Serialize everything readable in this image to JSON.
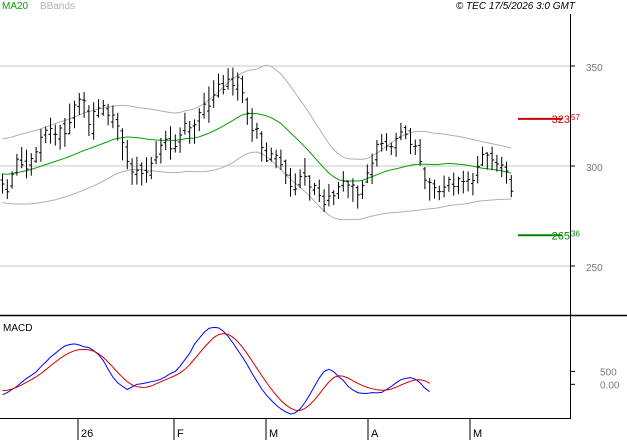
{
  "header": {
    "ma_label": "MA20",
    "bb_label": "BBands",
    "copyright": "© TEC 17/5/2026 3:0 GMT"
  },
  "colors": {
    "ma": "#00a000",
    "bb": "#b0b0b0",
    "macd": "#0000ff",
    "signal": "#d00000",
    "resistance": "#cc0000",
    "support": "#008800",
    "price": "#000000",
    "grid": "#c8c8c8"
  },
  "chart_data": [
    {
      "type": "bar",
      "name": "price",
      "ylim": [
        226,
        376
      ],
      "y_ticks": [
        {
          "value": 250,
          "label": "250"
        },
        {
          "value": 300,
          "label": "300"
        },
        {
          "value": 350,
          "label": "350"
        }
      ],
      "x_ticks": [
        "26",
        "F",
        "M",
        "A",
        "M"
      ],
      "levels": [
        {
          "name": "resistance",
          "value": 323.57,
          "label_main": "323",
          "label_frac": "57"
        },
        {
          "name": "support",
          "value": 265.36,
          "label_main": "265",
          "label_frac": "36"
        }
      ],
      "ohlc": [
        [
          293.0,
          291.0,
          296.1,
          286.2
        ],
        [
          288.3,
          287.1,
          293.4,
          283.5
        ],
        [
          290.0,
          295.9,
          297.4,
          288.7
        ],
        [
          296.7,
          303.4,
          306.1,
          295.2
        ],
        [
          302.9,
          300.6,
          309.5,
          298.9
        ],
        [
          302.4,
          298.5,
          308.2,
          293.8
        ],
        [
          300.5,
          303.7,
          306.4,
          295.2
        ],
        [
          302.4,
          307.1,
          309.5,
          301.6
        ],
        [
          306.6,
          314.4,
          318.5,
          302.1
        ],
        [
          315.5,
          317.9,
          319.6,
          311.4
        ],
        [
          315.8,
          318.8,
          324.1,
          311.2
        ],
        [
          315.9,
          315.8,
          320.7,
          310.2
        ],
        [
          313.5,
          319.0,
          320.6,
          308.2
        ],
        [
          321.1,
          316.2,
          324.0,
          309.6
        ],
        [
          316.1,
          321.7,
          331.2,
          315.8
        ],
        [
          324.0,
          330.5,
          332.6,
          318.9
        ],
        [
          329.8,
          333.4,
          336.5,
          325.5
        ],
        [
          333.0,
          332.6,
          337.0,
          324.1
        ],
        [
          327.5,
          320.7,
          330.4,
          315.0
        ],
        [
          316.2,
          327.3,
          331.9,
          313.1
        ],
        [
          325.3,
          329.0,
          333.4,
          324.2
        ],
        [
          326.1,
          330.2,
          333.0,
          325.1
        ],
        [
          328.6,
          325.4,
          331.1,
          320.3
        ],
        [
          322.0,
          325.5,
          330.3,
          318.9
        ],
        [
          323.2,
          320.0,
          326.6,
          312.7
        ],
        [
          317.6,
          311.7,
          318.8,
          302.8
        ],
        [
          309.5,
          302.3,
          313.0,
          298.4
        ],
        [
          301.1,
          297.0,
          303.9,
          290.6
        ],
        [
          295.8,
          297.9,
          304.6,
          290.7
        ],
        [
          300.4,
          296.3,
          301.8,
          290.2
        ],
        [
          297.8,
          297.0,
          304.3,
          291.6
        ],
        [
          295.4,
          301.4,
          304.5,
          293.4
        ],
        [
          303.0,
          304.5,
          312.4,
          300.9
        ],
        [
          305.9,
          310.4,
          314.0,
          301.2
        ],
        [
          311.7,
          313.4,
          317.6,
          307.9
        ],
        [
          313.7,
          308.6,
          319.9,
          303.2
        ],
        [
          308.7,
          309.7,
          315.8,
          306.7
        ],
        [
          312.0,
          315.5,
          319.3,
          306.6
        ],
        [
          317.7,
          321.3,
          326.6,
          315.7
        ],
        [
          317.1,
          319.1,
          322.5,
          311.1
        ],
        [
          320.0,
          320.6,
          323.3,
          311.1
        ],
        [
          322.5,
          326.7,
          328.9,
          317.5
        ],
        [
          325.7,
          330.9,
          336.6,
          323.7
        ],
        [
          327.5,
          329.9,
          339.8,
          321.6
        ],
        [
          333.0,
          335.5,
          342.9,
          329.1
        ],
        [
          335.1,
          340.9,
          346.2,
          334.2
        ],
        [
          341.2,
          338.3,
          345.5,
          335.8
        ],
        [
          339.8,
          343.4,
          348.9,
          338.2
        ],
        [
          343.5,
          340.2,
          349.2,
          335.2
        ],
        [
          338.4,
          344.4,
          346.8,
          332.7
        ],
        [
          343.6,
          336.6,
          345.2,
          331.5
        ],
        [
          333.1,
          326.4,
          334.3,
          320.6
        ],
        [
          324.1,
          317.7,
          328.9,
          312.1
        ],
        [
          318.4,
          318.7,
          321.6,
          313.6
        ],
        [
          316.1,
          309.3,
          317.3,
          302.2
        ],
        [
          307.7,
          302.6,
          311.8,
          302.0
        ],
        [
          303.3,
          306.1,
          309.2,
          302.2
        ],
        [
          303.6,
          305.3,
          308.1,
          298.9
        ],
        [
          304.3,
          300.6,
          308.2,
          298.0
        ],
        [
          302.4,
          295.5,
          303.2,
          291.0
        ],
        [
          295.4,
          289.8,
          299.0,
          284.7
        ],
        [
          288.1,
          288.5,
          296.3,
          285.3
        ],
        [
          290.6,
          294.8,
          298.3,
          289.0
        ],
        [
          296.6,
          294.8,
          304.0,
          290.2
        ],
        [
          294.9,
          289.5,
          295.4,
          282.7
        ],
        [
          288.0,
          290.3,
          291.5,
          285.5
        ],
        [
          289.0,
          285.2,
          293.2,
          282.0
        ],
        [
          284.8,
          280.7,
          288.4,
          277.0
        ],
        [
          282.8,
          285.0,
          291.0,
          279.8
        ],
        [
          286.8,
          285.1,
          287.9,
          280.4
        ],
        [
          286.2,
          289.6,
          292.0,
          283.5
        ],
        [
          290.3,
          292.4,
          297.4,
          287.2
        ],
        [
          292.2,
          290.5,
          292.8,
          283.9
        ],
        [
          289.9,
          290.5,
          293.8,
          282.1
        ],
        [
          289.2,
          285.6,
          290.3,
          278.7
        ],
        [
          285.9,
          290.2,
          292.7,
          283.5
        ],
        [
          292.0,
          296.5,
          300.8,
          291.5
        ],
        [
          295.7,
          301.4,
          306.2,
          291.0
        ],
        [
          303.1,
          310.8,
          313.0,
          299.7
        ],
        [
          311.0,
          311.3,
          316.0,
          307.2
        ],
        [
          312.2,
          310.0,
          316.4,
          307.6
        ],
        [
          309.7,
          309.6,
          311.6,
          305.5
        ],
        [
          309.1,
          313.8,
          316.6,
          304.6
        ],
        [
          314.4,
          317.0,
          321.6,
          312.9
        ],
        [
          319.2,
          315.9,
          320.3,
          313.4
        ],
        [
          317.6,
          310.8,
          319.0,
          306.0
        ],
        [
          309.7,
          310.0,
          313.2,
          305.5
        ],
        [
          310.3,
          302.2,
          313.5,
          300.2
        ],
        [
          298.5,
          292.9,
          299.5,
          288.4
        ],
        [
          292.0,
          291.8,
          294.1,
          282.7
        ],
        [
          291.1,
          289.2,
          293.2,
          283.7
        ],
        [
          287.2,
          287.2,
          290.2,
          282.9
        ],
        [
          287.2,
          289.4,
          295.2,
          284.3
        ],
        [
          290.2,
          293.3,
          294.6,
          287.1
        ],
        [
          290.9,
          289.7,
          296.7,
          285.2
        ],
        [
          289.7,
          293.6,
          294.6,
          285.9
        ],
        [
          292.3,
          292.3,
          297.6,
          286.3
        ],
        [
          292.4,
          293.2,
          297.3,
          287.3
        ],
        [
          291.2,
          292.7,
          296.5,
          285.3
        ],
        [
          295.4,
          299.7,
          305.0,
          291.3
        ],
        [
          300.6,
          305.8,
          309.6,
          300.0
        ],
        [
          306.4,
          305.5,
          306.9,
          298.2
        ],
        [
          306.3,
          303.0,
          309.7,
          297.9
        ],
        [
          301.8,
          301.0,
          305.6,
          297.2
        ],
        [
          299.1,
          300.5,
          304.6,
          294.5
        ],
        [
          299.4,
          297.5,
          302.2,
          291.2
        ],
        [
          293.3,
          287.4,
          295.5,
          284.4
        ]
      ],
      "ma20": [
        296.1,
        295.9,
        296.2,
        296.6,
        297.2,
        297.7,
        298.3,
        299.1,
        299.9,
        300.7,
        301.5,
        302.3,
        303.1,
        303.9,
        304.8,
        305.8,
        306.8,
        307.8,
        308.6,
        309.5,
        310.4,
        311.3,
        312.2,
        313.2,
        313.8,
        314.2,
        314.5,
        314.4,
        314.2,
        313.9,
        313.5,
        313.2,
        313.0,
        312.9,
        312.9,
        312.8,
        312.8,
        313.1,
        313.6,
        313.8,
        314.0,
        314.6,
        315.5,
        316.4,
        317.5,
        318.7,
        320.0,
        321.4,
        322.8,
        324.3,
        325.6,
        326.1,
        326.3,
        326.2,
        325.7,
        325.1,
        324.1,
        322.8,
        321.2,
        319.0,
        316.6,
        314.3,
        312.0,
        309.6,
        307.0,
        304.3,
        301.6,
        298.9,
        296.5,
        294.6,
        293.2,
        292.6,
        292.5,
        292.5,
        292.5,
        292.8,
        293.8,
        294.7,
        295.6,
        296.6,
        297.5,
        298.1,
        298.6,
        299.2,
        299.8,
        300.3,
        300.8,
        300.9,
        300.9,
        300.8,
        300.7,
        300.8,
        301.1,
        301.3,
        301.1,
        300.9,
        300.7,
        300.4,
        299.9,
        299.4,
        298.9,
        298.6,
        298.3,
        298.0,
        297.6,
        297.0,
        296.4
      ],
      "bb_upper": [
        313.5,
        314.0,
        314.5,
        315.3,
        316.0,
        316.6,
        317.3,
        317.9,
        318.6,
        319.6,
        320.3,
        321.3,
        322.1,
        322.8,
        323.6,
        324.6,
        325.6,
        326.5,
        327.2,
        327.9,
        328.5,
        329.0,
        329.5,
        329.9,
        330.2,
        330.3,
        330.2,
        329.8,
        329.3,
        329.0,
        328.7,
        328.4,
        328.0,
        327.5,
        327.1,
        326.7,
        326.5,
        326.8,
        327.5,
        328.0,
        328.6,
        329.7,
        331.3,
        333.0,
        334.9,
        337.0,
        339.4,
        341.6,
        343.6,
        345.2,
        346.6,
        347.6,
        348.1,
        348.5,
        349.6,
        350.5,
        349.8,
        348.0,
        346.0,
        343.1,
        339.9,
        336.5,
        333.1,
        329.7,
        326.1,
        322.3,
        318.5,
        314.8,
        311.3,
        308.3,
        306.0,
        304.4,
        303.6,
        303.5,
        303.4,
        303.3,
        303.8,
        304.9,
        306.4,
        308.1,
        309.9,
        311.6,
        313.3,
        314.8,
        315.8,
        316.6,
        317.2,
        317.4,
        317.3,
        316.8,
        316.4,
        316.2,
        316.0,
        315.5,
        315.1,
        314.8,
        314.3,
        313.8,
        313.3,
        312.7,
        312.1,
        311.6,
        311.1,
        310.6,
        310.2,
        309.6,
        309.0
      ],
      "bb_lower": [
        281.7,
        281.3,
        281.1,
        281.0,
        281.0,
        281.0,
        281.1,
        281.4,
        281.8,
        282.1,
        282.6,
        283.1,
        283.8,
        284.5,
        285.3,
        286.1,
        287.1,
        288.1,
        289.1,
        290.1,
        291.2,
        292.5,
        293.8,
        295.2,
        296.3,
        297.1,
        297.8,
        298.1,
        298.2,
        298.1,
        297.9,
        297.6,
        297.3,
        297.1,
        296.9,
        296.7,
        296.7,
        296.8,
        297.2,
        297.3,
        297.2,
        297.1,
        297.2,
        297.5,
        297.9,
        298.6,
        299.4,
        300.4,
        301.7,
        303.4,
        305.0,
        306.2,
        306.8,
        307.0,
        306.2,
        304.8,
        302.8,
        300.6,
        298.2,
        295.7,
        293.4,
        291.4,
        289.4,
        287.2,
        284.9,
        282.4,
        279.8,
        277.5,
        275.5,
        274.1,
        273.4,
        273.1,
        273.2,
        273.2,
        273.3,
        273.6,
        274.3,
        275.0,
        275.5,
        276.0,
        276.4,
        276.6,
        276.8,
        277.0,
        277.3,
        277.5,
        277.7,
        278.0,
        278.3,
        278.6,
        278.8,
        279.2,
        279.7,
        280.2,
        280.5,
        280.7,
        281.0,
        281.4,
        281.9,
        282.3,
        282.6,
        282.8,
        283.0,
        283.2,
        283.3,
        283.4,
        283.5
      ]
    },
    {
      "type": "line",
      "title": "MACD",
      "ylim": [
        -1300,
        2600
      ],
      "y_ticks": [
        {
          "value": 500,
          "label": "500"
        },
        {
          "value": 0,
          "label": "0.00"
        }
      ],
      "series": [
        {
          "name": "MACD",
          "values": [
            -400,
            -320,
            -200,
            -80,
            80,
            230,
            350,
            480,
            680,
            860,
            1050,
            1200,
            1350,
            1480,
            1540,
            1560,
            1520,
            1450,
            1420,
            1300,
            1150,
            920,
            580,
            280,
            60,
            -80,
            -200,
            -100,
            0,
            20,
            60,
            100,
            140,
            200,
            300,
            420,
            500,
            700,
            950,
            1200,
            1550,
            1780,
            2000,
            2160,
            2200,
            2180,
            2050,
            1850,
            1600,
            1320,
            1050,
            750,
            420,
            120,
            -180,
            -420,
            -620,
            -800,
            -950,
            -1060,
            -1150,
            -1100,
            -950,
            -700,
            -400,
            -80,
            250,
            500,
            580,
            490,
            300,
            150,
            -80,
            -220,
            -320,
            -350,
            -350,
            -320,
            -330,
            -310,
            -200,
            -80,
            60,
            180,
            230,
            260,
            200,
            60,
            -150,
            -280
          ]
        },
        {
          "name": "Signal",
          "values": [
            -250,
            -230,
            -180,
            -110,
            -20,
            80,
            180,
            290,
            420,
            560,
            710,
            860,
            1000,
            1120,
            1220,
            1300,
            1340,
            1350,
            1330,
            1280,
            1180,
            1040,
            860,
            660,
            460,
            270,
            100,
            -20,
            -90,
            -120,
            -110,
            -60,
            20,
            100,
            180,
            260,
            340,
            440,
            580,
            760,
            980,
            1200,
            1420,
            1620,
            1800,
            1920,
            1960,
            1930,
            1820,
            1650,
            1430,
            1180,
            900,
            620,
            340,
            70,
            -180,
            -410,
            -620,
            -790,
            -920,
            -1000,
            -1010,
            -930,
            -790,
            -600,
            -370,
            -130,
            90,
            260,
            330,
            310,
            240,
            140,
            40,
            -50,
            -120,
            -170,
            -210,
            -230,
            -220,
            -180,
            -110,
            -30,
            50,
            120,
            170,
            180,
            140,
            40
          ]
        }
      ]
    }
  ]
}
